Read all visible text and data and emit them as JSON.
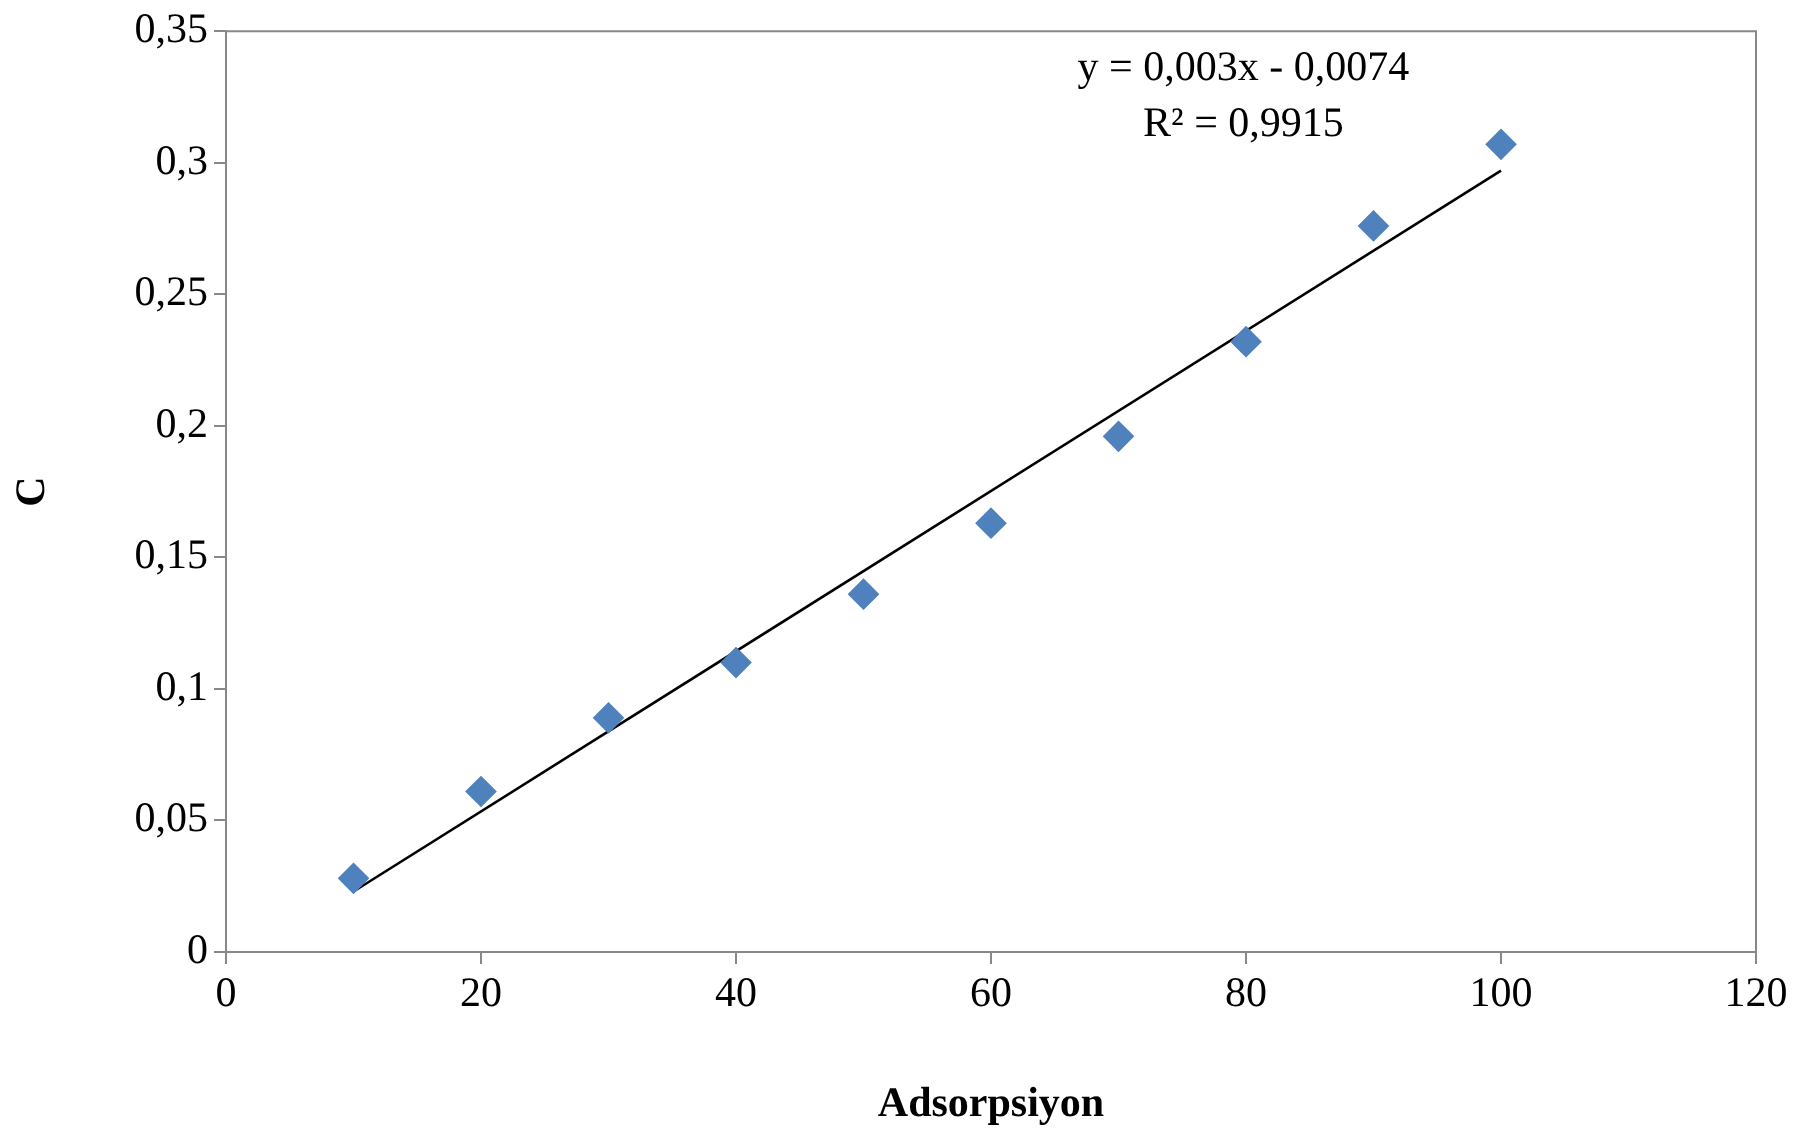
{
  "chart_data": {
    "type": "scatter",
    "xlabel": "Adsorpsiyon",
    "ylabel": "C",
    "xlim": [
      0,
      120
    ],
    "xticks": [
      0,
      20,
      40,
      60,
      80,
      100,
      120
    ],
    "ylim": [
      0,
      0.35
    ],
    "yticks": [
      0,
      {
        "value": 0.05,
        "label": "0,05"
      },
      {
        "value": 0.1,
        "label": "0,1"
      },
      {
        "value": 0.15,
        "label": "0,15"
      },
      {
        "value": 0.2,
        "label": "0,2"
      },
      {
        "value": 0.25,
        "label": "0,25"
      },
      {
        "value": 0.3,
        "label": "0,3"
      },
      {
        "value": 0.35,
        "label": "0,35"
      }
    ],
    "marker": "diamond",
    "legend": false,
    "series": [
      {
        "color": "#4f81bd",
        "x": [
          10,
          20,
          30,
          40,
          50,
          60,
          70,
          80,
          90,
          100
        ],
        "values": [
          0.028,
          0.061,
          0.089,
          0.11,
          0.136,
          0.163,
          0.196,
          0.232,
          0.276,
          0.307
        ]
      },
      {
        "type": "line",
        "color": "#000000",
        "marker": "none",
        "x": [
          10,
          100
        ],
        "values": [
          0.023,
          0.297
        ]
      }
    ],
    "annotations": [
      "y = 0,003x - 0,0074",
      "R² = 0,9915"
    ]
  }
}
